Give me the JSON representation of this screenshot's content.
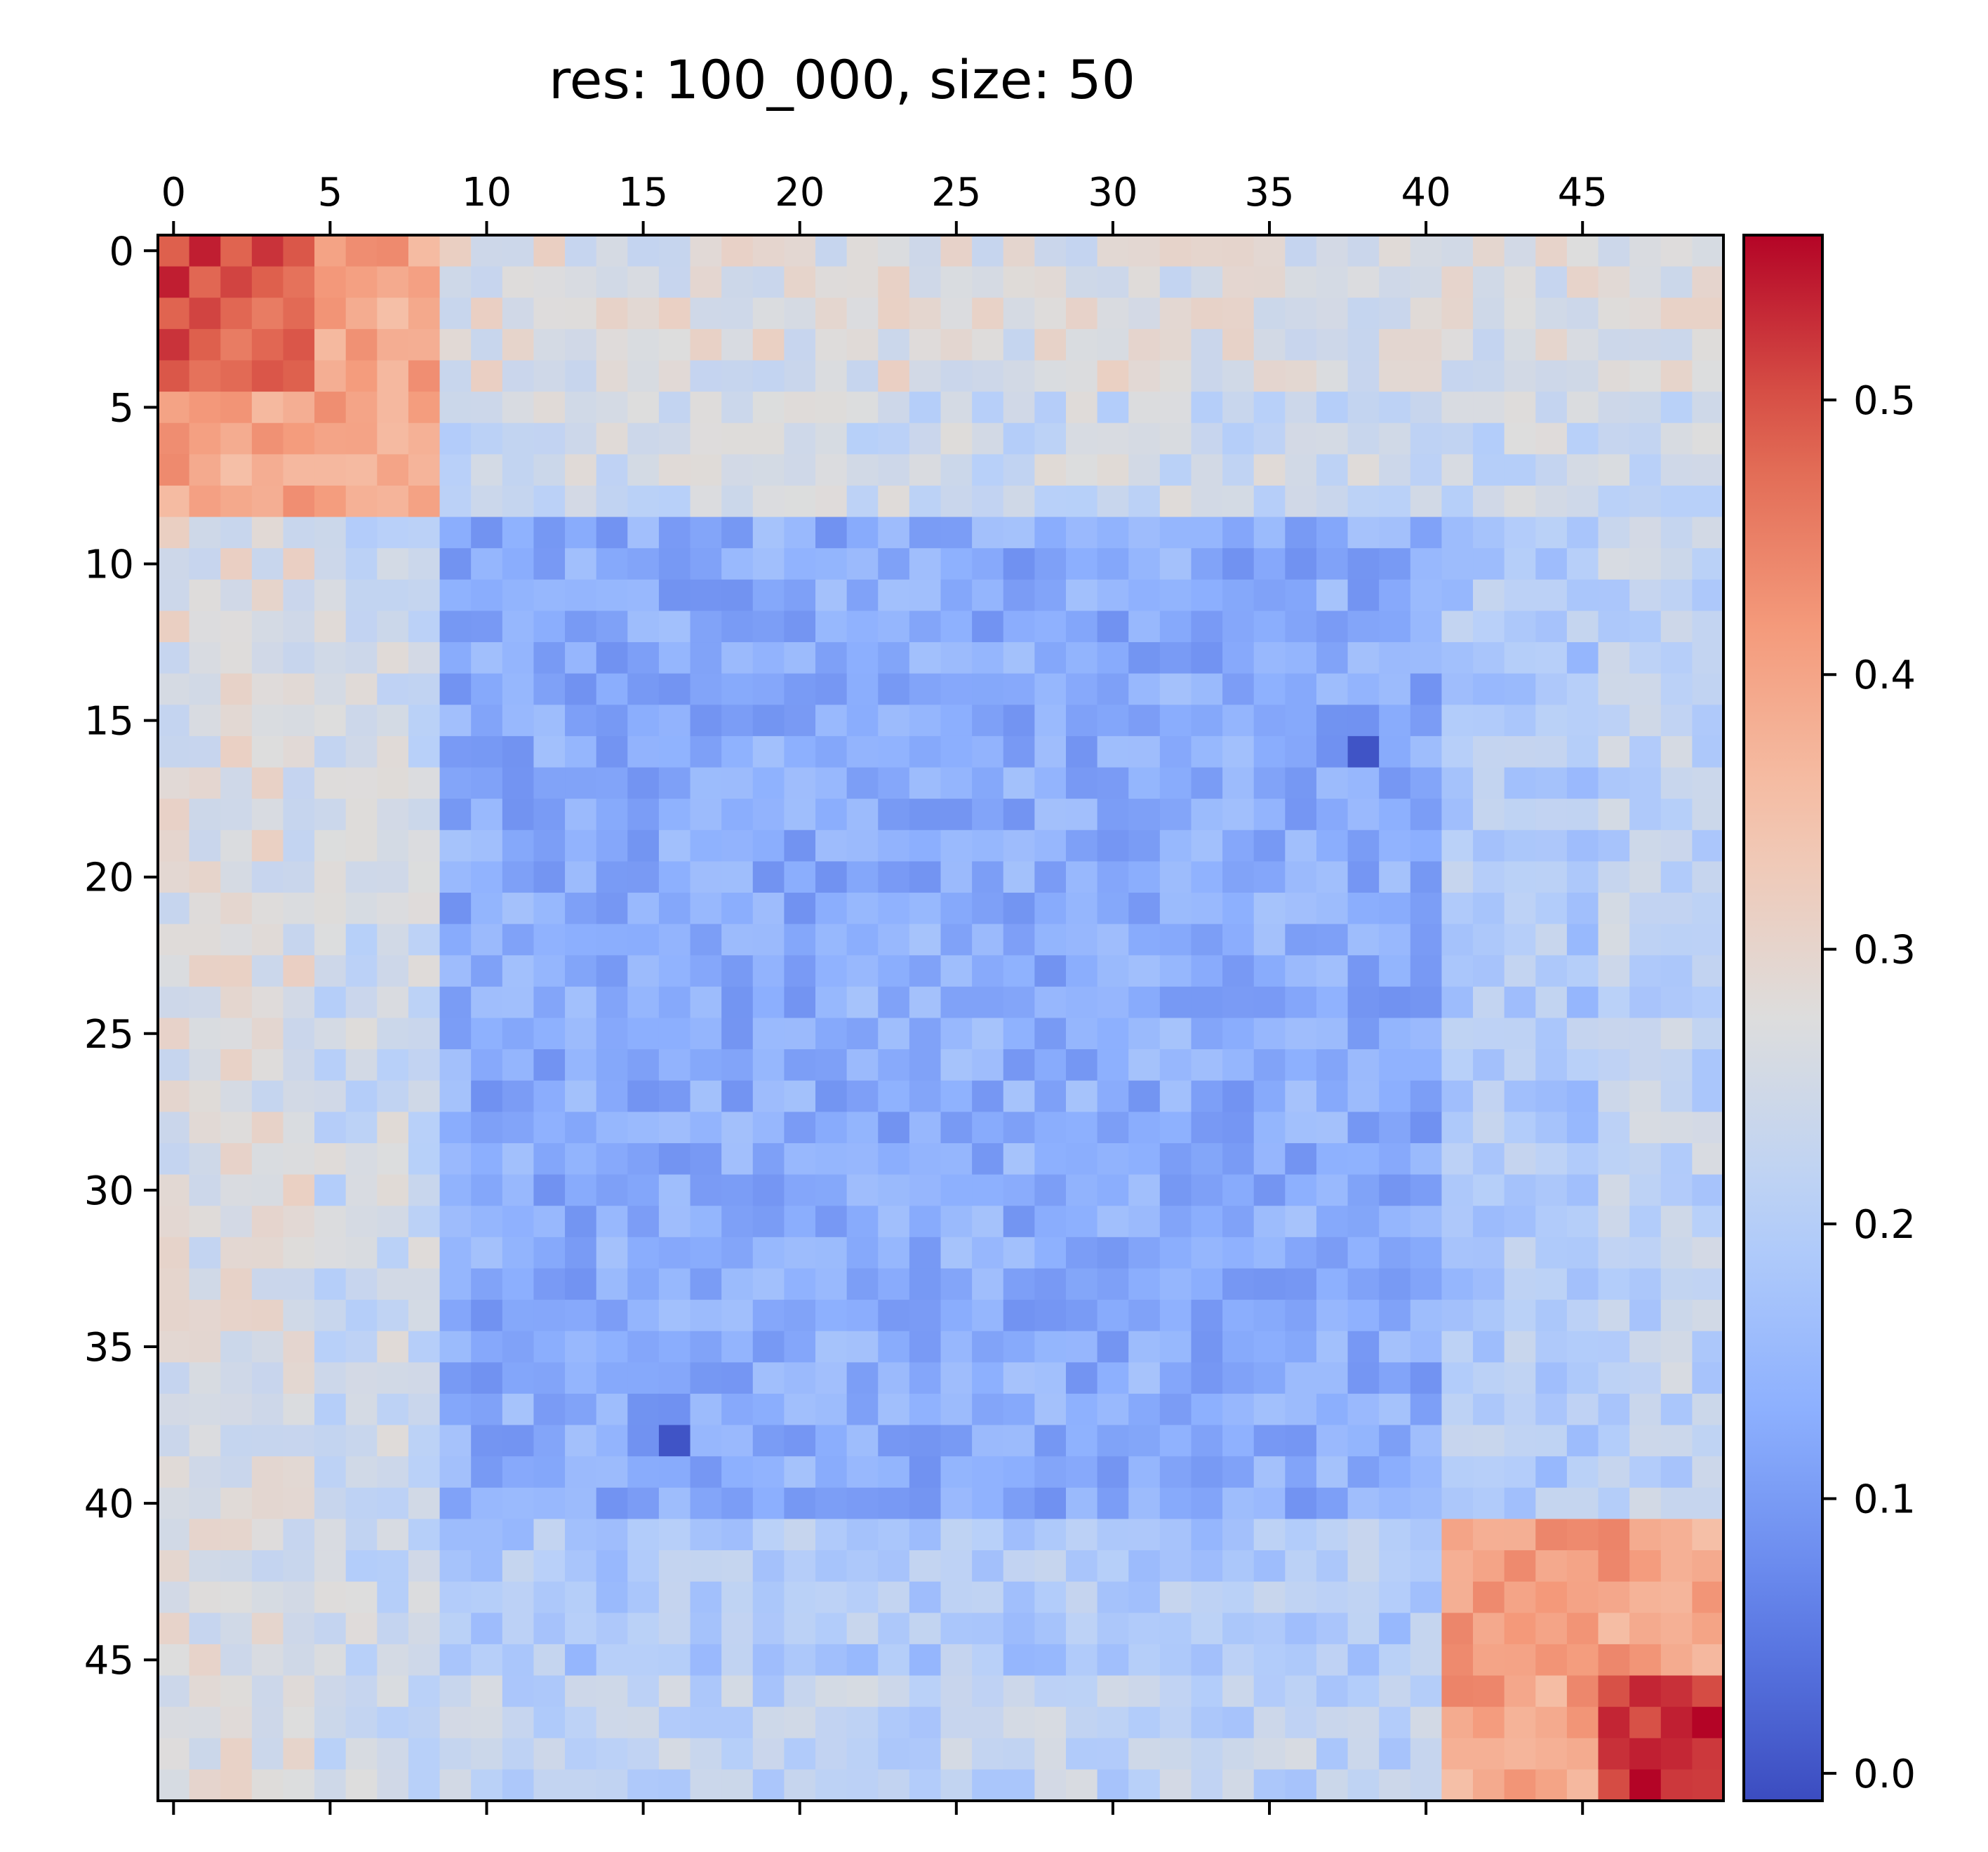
{
  "chart_data": {
    "type": "heatmap",
    "title": "res: 100_000, size: 50",
    "xlabel": "",
    "ylabel": "",
    "rows": 50,
    "cols": 50,
    "x_ticks": [
      0,
      5,
      10,
      15,
      20,
      25,
      30,
      35,
      40,
      45
    ],
    "y_ticks": [
      0,
      5,
      10,
      15,
      20,
      25,
      30,
      35,
      40,
      45
    ],
    "x_tick_labels": [
      "0",
      "5",
      "10",
      "15",
      "20",
      "25",
      "30",
      "35",
      "40",
      "45"
    ],
    "y_tick_labels": [
      "0",
      "5",
      "10",
      "15",
      "20",
      "25",
      "30",
      "35",
      "40",
      "45"
    ],
    "colorbar": {
      "colormap": "coolwarm",
      "vmin": -0.01,
      "vmax": 0.56,
      "ticks": [
        0.0,
        0.1,
        0.2,
        0.3,
        0.4,
        0.5
      ],
      "tick_labels": [
        "0.0",
        "0.1",
        "0.2",
        "0.3",
        "0.4",
        "0.5"
      ]
    },
    "value_description": "Symmetric matrix. Block 0-8 x 0-8 ~0.40-0.55, block 41-49 x 41-49 ~0.35-0.56 (max 0.56 at [47,49]), row band 0-8 ~0.22-0.36, column band 0-4 ~0.24-0.32, interior ~0.05-0.20, min 0.0 at [16,38].",
    "values_seed": 7
  }
}
